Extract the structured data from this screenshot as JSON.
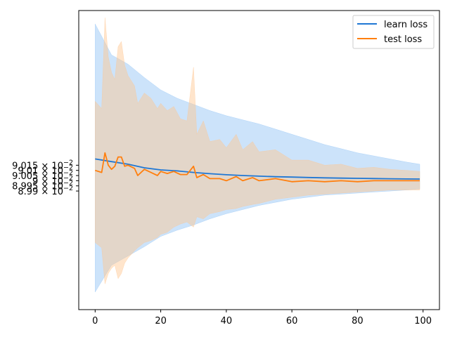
{
  "chart_data": {
    "type": "line",
    "title": "",
    "xlabel": "",
    "ylabel": "",
    "xlim": [
      -5,
      105
    ],
    "ylim": [
      0.089875,
      0.090165
    ],
    "grid": false,
    "legend_placement": "top-right",
    "x_ticks": [
      {
        "value": 0,
        "label": "0"
      },
      {
        "value": 20,
        "label": "20"
      },
      {
        "value": 40,
        "label": "40"
      },
      {
        "value": 60,
        "label": "60"
      },
      {
        "value": 80,
        "label": "80"
      },
      {
        "value": 100,
        "label": "100"
      }
    ],
    "y_ticks": [
      {
        "value": 0.08999,
        "mantissa": "8.99",
        "exponent": "−2"
      },
      {
        "value": 0.089995,
        "mantissa": "8.995",
        "exponent": "−2"
      },
      {
        "value": 0.09,
        "mantissa": "9",
        "exponent": "−2"
      },
      {
        "value": 0.090005,
        "mantissa": "9.005",
        "exponent": "−2"
      },
      {
        "value": 0.09001,
        "mantissa": "9.01",
        "exponent": "−2"
      },
      {
        "value": 0.090015,
        "mantissa": "9.015",
        "exponent": "−2"
      }
    ],
    "series": [
      {
        "name": "learn loss",
        "color": "#1f77d4",
        "band_color": "#8ec2f5",
        "x": [
          0,
          5,
          10,
          15,
          20,
          25,
          30,
          35,
          40,
          45,
          50,
          55,
          60,
          65,
          70,
          75,
          80,
          85,
          90,
          95,
          99
        ],
        "y": [
          0.0900211,
          0.0900185,
          0.090016,
          0.0900125,
          0.0900105,
          0.0900095,
          0.090008,
          0.0900068,
          0.0900058,
          0.090005,
          0.0900044,
          0.0900039,
          0.0900035,
          0.0900031,
          0.0900028,
          0.0900025,
          0.0900023,
          0.0900021,
          0.0900019,
          0.0900017,
          0.0900016
        ],
        "upper": [
          0.090152,
          0.090122,
          0.090113,
          0.0901,
          0.090088,
          0.09008,
          0.090074,
          0.090068,
          0.090063,
          0.090059,
          0.090055,
          0.09005,
          0.090045,
          0.09004,
          0.090035,
          0.090031,
          0.090027,
          0.090024,
          0.090021,
          0.090018,
          0.090016
        ],
        "lower": [
          0.089892,
          0.089918,
          0.089927,
          0.089936,
          0.089946,
          0.089952,
          0.089957,
          0.089963,
          0.089968,
          0.089972,
          0.089976,
          0.089979,
          0.089982,
          0.089984,
          0.089986,
          0.089987,
          0.089988,
          0.089989,
          0.08999,
          0.089991,
          0.089992
        ]
      },
      {
        "name": "test loss",
        "color": "#ff7f0e",
        "band_color": "#ffc58f",
        "x": [
          0,
          2,
          3,
          4,
          5,
          6,
          7,
          8,
          9,
          10,
          12,
          13,
          15,
          17,
          19,
          20,
          22,
          24,
          26,
          28,
          30,
          31,
          33,
          35,
          38,
          40,
          43,
          45,
          48,
          50,
          55,
          60,
          65,
          70,
          75,
          80,
          85,
          90,
          95,
          99
        ],
        "y": [
          0.09001,
          0.090008,
          0.090027,
          0.090015,
          0.090011,
          0.090014,
          0.090023,
          0.090023,
          0.090014,
          0.090015,
          0.090012,
          0.090005,
          0.090011,
          0.090008,
          0.090005,
          0.090009,
          0.090007,
          0.090009,
          0.090006,
          0.090006,
          0.090014,
          0.090003,
          0.090006,
          0.090002,
          0.090002,
          0.09,
          0.090004,
          0.09,
          0.090003,
          0.09,
          0.090002,
          0.089999,
          0.09,
          0.089999,
          0.09,
          0.089999,
          0.09,
          0.09,
          0.09,
          0.09
        ],
        "upper": [
          0.090077,
          0.09007,
          0.090158,
          0.09012,
          0.090105,
          0.090098,
          0.09013,
          0.090135,
          0.090112,
          0.090102,
          0.090092,
          0.090075,
          0.090085,
          0.09008,
          0.09007,
          0.090075,
          0.090068,
          0.090072,
          0.09006,
          0.090058,
          0.09011,
          0.090045,
          0.090058,
          0.090038,
          0.09004,
          0.090032,
          0.090045,
          0.09003,
          0.090038,
          0.090028,
          0.09003,
          0.09002,
          0.09002,
          0.090015,
          0.090016,
          0.090012,
          0.090013,
          0.090011,
          0.09001,
          0.090009
        ],
        "lower": [
          0.08994,
          0.089935,
          0.0899,
          0.08991,
          0.089915,
          0.089918,
          0.089905,
          0.08991,
          0.08992,
          0.089925,
          0.089932,
          0.089935,
          0.08994,
          0.089942,
          0.089945,
          0.089948,
          0.08995,
          0.089955,
          0.089958,
          0.08996,
          0.089955,
          0.089965,
          0.089963,
          0.089968,
          0.08997,
          0.089972,
          0.089973,
          0.089975,
          0.089977,
          0.089978,
          0.089982,
          0.089984,
          0.089986,
          0.089987,
          0.089988,
          0.089989,
          0.08999,
          0.089991,
          0.089991,
          0.089991
        ]
      }
    ]
  }
}
